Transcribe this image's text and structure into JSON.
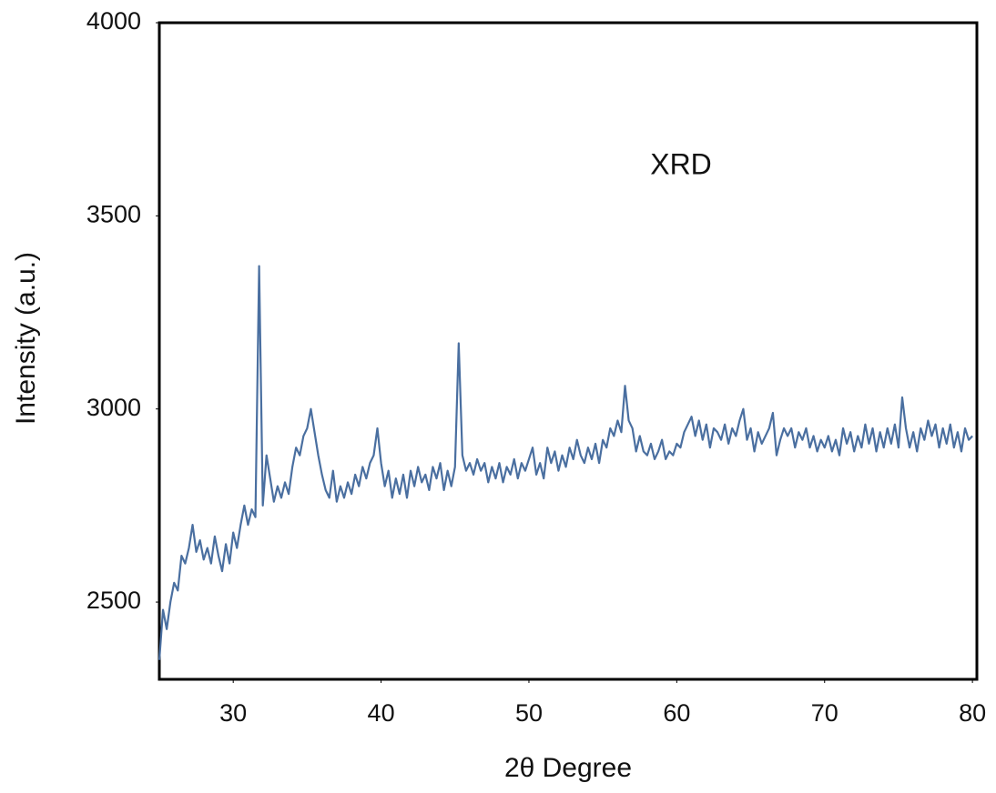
{
  "chart_data": {
    "type": "line",
    "annotation": "XRD",
    "xlabel": "2θ Degree",
    "ylabel": "Intensity (a.u.)",
    "color": "#4a6fa0",
    "grid": false,
    "xlim": [
      25,
      80.3
    ],
    "ylim": [
      2300,
      4000
    ],
    "xticks": [
      30,
      40,
      50,
      60,
      70,
      80
    ],
    "yticks": [
      2500,
      3000,
      3500,
      4000
    ],
    "x": [
      25,
      25.25,
      25.5,
      25.75,
      26,
      26.25,
      26.5,
      26.75,
      27,
      27.25,
      27.5,
      27.75,
      28,
      28.25,
      28.5,
      28.75,
      29,
      29.25,
      29.5,
      29.75,
      30,
      30.25,
      30.5,
      30.75,
      31,
      31.25,
      31.5,
      31.75,
      32,
      32.25,
      32.5,
      32.75,
      33,
      33.25,
      33.5,
      33.75,
      34,
      34.25,
      34.5,
      34.75,
      35,
      35.25,
      35.5,
      35.75,
      36,
      36.25,
      36.5,
      36.75,
      37,
      37.25,
      37.5,
      37.75,
      38,
      38.25,
      38.5,
      38.75,
      39,
      39.25,
      39.5,
      39.75,
      40,
      40.25,
      40.5,
      40.75,
      41,
      41.25,
      41.5,
      41.75,
      42,
      42.25,
      42.5,
      42.75,
      43,
      43.25,
      43.5,
      43.75,
      44,
      44.25,
      44.5,
      44.75,
      45,
      45.25,
      45.5,
      45.75,
      46,
      46.25,
      46.5,
      46.75,
      47,
      47.25,
      47.5,
      47.75,
      48,
      48.25,
      48.5,
      48.75,
      49,
      49.25,
      49.5,
      49.75,
      50,
      50.25,
      50.5,
      50.75,
      51,
      51.25,
      51.5,
      51.75,
      52,
      52.25,
      52.5,
      52.75,
      53,
      53.25,
      53.5,
      53.75,
      54,
      54.25,
      54.5,
      54.75,
      55,
      55.25,
      55.5,
      55.75,
      56,
      56.25,
      56.5,
      56.75,
      57,
      57.25,
      57.5,
      57.75,
      58,
      58.25,
      58.5,
      58.75,
      59,
      59.25,
      59.5,
      59.75,
      60,
      60.25,
      60.5,
      60.75,
      61,
      61.25,
      61.5,
      61.75,
      62,
      62.25,
      62.5,
      62.75,
      63,
      63.25,
      63.5,
      63.75,
      64,
      64.25,
      64.5,
      64.75,
      65,
      65.25,
      65.5,
      65.75,
      66,
      66.25,
      66.5,
      66.75,
      67,
      67.25,
      67.5,
      67.75,
      68,
      68.25,
      68.5,
      68.75,
      69,
      69.25,
      69.5,
      69.75,
      70,
      70.25,
      70.5,
      70.75,
      71,
      71.25,
      71.5,
      71.75,
      72,
      72.25,
      72.5,
      72.75,
      73,
      73.25,
      73.5,
      73.75,
      74,
      74.25,
      74.5,
      74.75,
      75,
      75.25,
      75.5,
      75.75,
      76,
      76.25,
      76.5,
      76.75,
      77,
      77.25,
      77.5,
      77.75,
      78,
      78.25,
      78.5,
      78.75,
      79,
      79.25,
      79.5,
      79.75,
      80
    ],
    "values": [
      2350,
      2480,
      2430,
      2500,
      2550,
      2530,
      2620,
      2600,
      2640,
      2700,
      2630,
      2660,
      2610,
      2640,
      2600,
      2670,
      2620,
      2580,
      2650,
      2600,
      2680,
      2640,
      2700,
      2750,
      2700,
      2740,
      2720,
      3370,
      2750,
      2880,
      2820,
      2760,
      2800,
      2770,
      2810,
      2780,
      2850,
      2900,
      2880,
      2930,
      2950,
      3000,
      2940,
      2880,
      2830,
      2790,
      2770,
      2840,
      2760,
      2800,
      2770,
      2810,
      2780,
      2830,
      2800,
      2850,
      2820,
      2860,
      2880,
      2950,
      2860,
      2800,
      2840,
      2770,
      2820,
      2780,
      2830,
      2770,
      2840,
      2800,
      2850,
      2810,
      2830,
      2790,
      2850,
      2820,
      2860,
      2790,
      2840,
      2800,
      2850,
      3170,
      2880,
      2840,
      2860,
      2830,
      2870,
      2840,
      2860,
      2810,
      2850,
      2820,
      2860,
      2810,
      2850,
      2830,
      2870,
      2820,
      2860,
      2840,
      2870,
      2900,
      2830,
      2860,
      2820,
      2900,
      2860,
      2890,
      2840,
      2880,
      2850,
      2900,
      2870,
      2920,
      2880,
      2860,
      2900,
      2870,
      2910,
      2860,
      2920,
      2900,
      2950,
      2930,
      2970,
      2940,
      3060,
      2970,
      2950,
      2890,
      2930,
      2890,
      2880,
      2910,
      2870,
      2890,
      2920,
      2870,
      2890,
      2880,
      2910,
      2900,
      2940,
      2960,
      2980,
      2930,
      2970,
      2920,
      2960,
      2900,
      2950,
      2940,
      2920,
      2960,
      2910,
      2950,
      2930,
      2970,
      3000,
      2920,
      2950,
      2890,
      2940,
      2910,
      2930,
      2950,
      2990,
      2880,
      2920,
      2950,
      2930,
      2950,
      2900,
      2940,
      2920,
      2950,
      2900,
      2930,
      2890,
      2920,
      2900,
      2930,
      2890,
      2920,
      2880,
      2950,
      2910,
      2940,
      2890,
      2930,
      2900,
      2960,
      2910,
      2950,
      2890,
      2940,
      2900,
      2950,
      2910,
      2960,
      2900,
      3030,
      2950,
      2900,
      2940,
      2890,
      2950,
      2920,
      2970,
      2930,
      2960,
      2900,
      2950,
      2910,
      2960,
      2900,
      2940,
      2890,
      2950,
      2920,
      2930
    ]
  }
}
